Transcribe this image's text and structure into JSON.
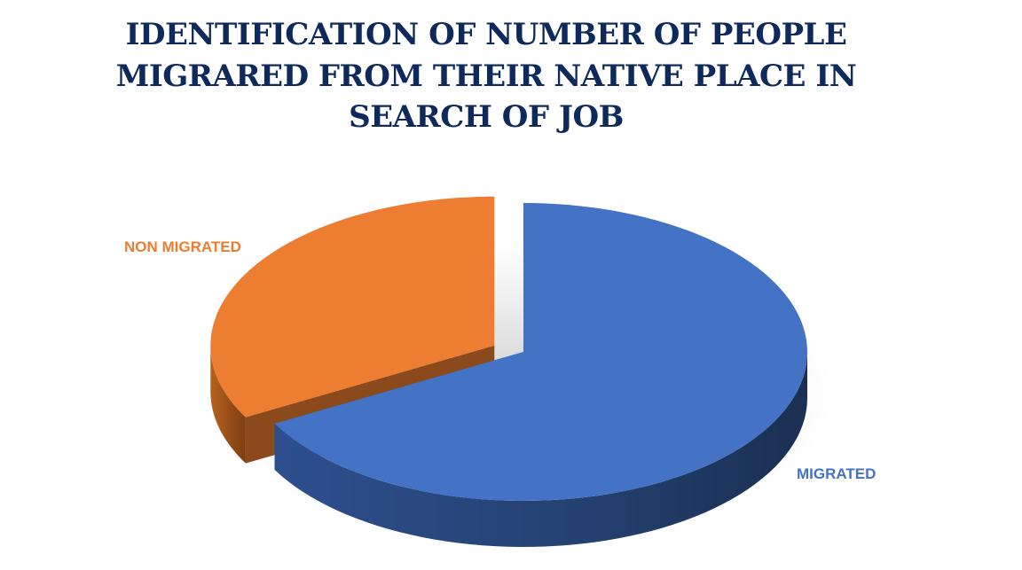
{
  "chart_data": {
    "type": "pie",
    "title_lines": [
      "IDENTIFICATION OF NUMBER OF PEOPLE",
      "MIGRARED FROM THEIR NATIVE PLACE IN",
      "SEARCH OF JOB"
    ],
    "categories": [
      "MIGRATED",
      "NON MIGRATED"
    ],
    "values": [
      67,
      33
    ],
    "colors": [
      "#4472c4",
      "#ed7d31"
    ],
    "side_colors": [
      "#2f4f8a",
      "#8a4a1c"
    ],
    "exploded": true,
    "three_d": true,
    "legend": "none"
  }
}
